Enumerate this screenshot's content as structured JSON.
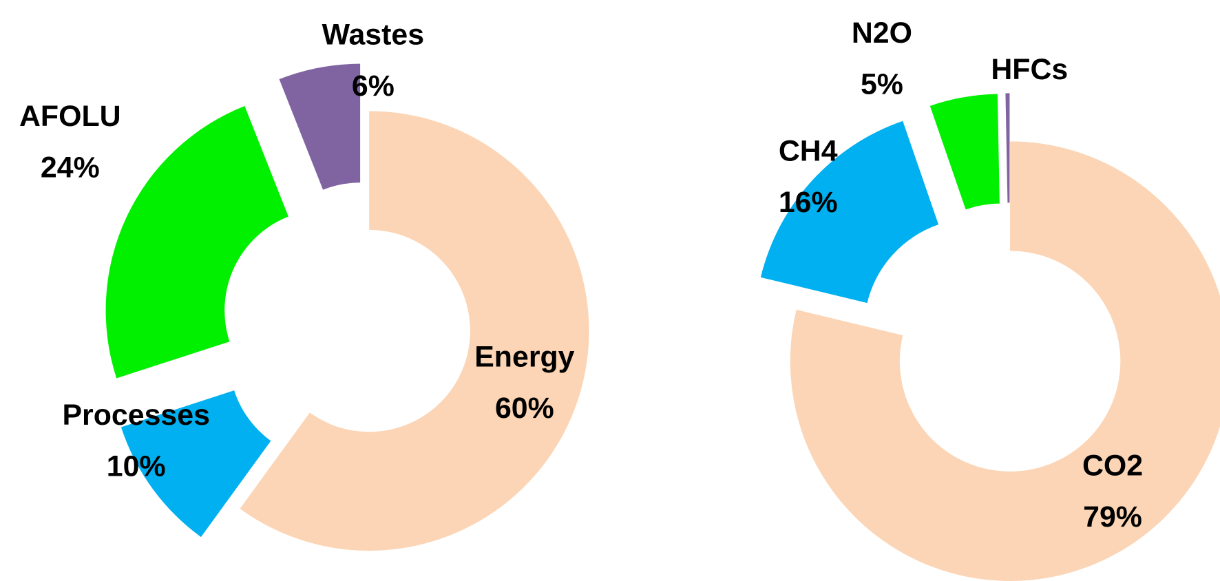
{
  "chart_data": [
    {
      "type": "pie",
      "donut": true,
      "categories": [
        "Energy",
        "Processes",
        "AFOLU",
        "Wastes"
      ],
      "values": [
        60,
        10,
        24,
        6
      ],
      "value_labels": [
        "60%",
        "10%",
        "24%",
        "6%"
      ],
      "colors": [
        "#fbd5b5",
        "#00b0f0",
        "#00f000",
        "#8064a2"
      ]
    },
    {
      "type": "pie",
      "donut": true,
      "categories": [
        "CO2",
        "CH4",
        "N2O",
        "HFCs"
      ],
      "values": [
        79,
        16,
        5,
        0.3
      ],
      "value_labels": [
        "79%",
        "16%",
        "5%",
        null
      ],
      "colors": [
        "#fbd5b5",
        "#00b0f0",
        "#00f000",
        "#8064a2"
      ]
    }
  ]
}
